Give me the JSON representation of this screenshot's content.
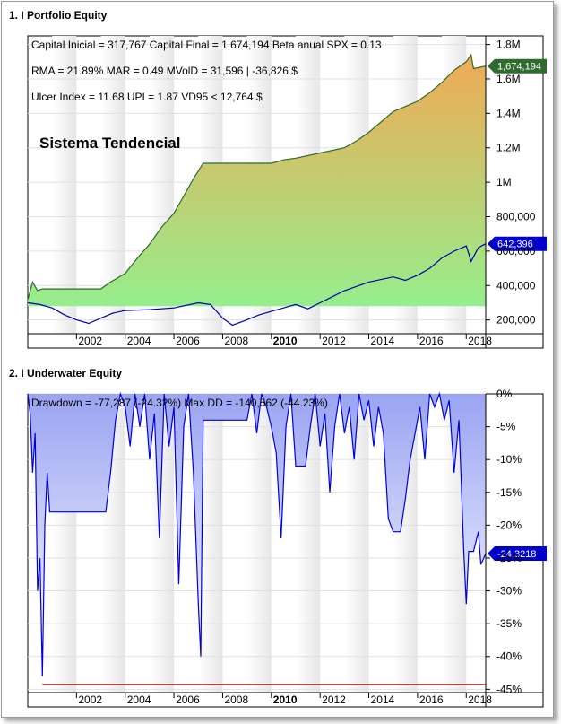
{
  "panels": [
    {
      "title": "1. I Portfolio Equity"
    },
    {
      "title": "2. I Underwater Equity"
    }
  ],
  "chart_data": [
    {
      "type": "area",
      "title": "1. I Portfolio Equity",
      "info_lines": [
        "Capital Inicial = 317,767  Capital Final = 1,674,194  Beta anual SPX = 0.13",
        "RMA = 21.89%   MAR = 0.49   MVolD = 31,596 | -36,826 $",
        "Ulcer Index = 11.68   UPI = 1.87   VD95 < 12,764 $"
      ],
      "annotation": "Sistema Tendencial",
      "x_ticks": [
        "2002",
        "2004",
        "2006",
        "2008",
        "2010",
        "2012",
        "2014",
        "2016",
        "2018"
      ],
      "x_range": [
        2000.0,
        2018.8
      ],
      "y_ticks": [
        "200,000",
        "400,000",
        "600,000",
        "800,000",
        "1M",
        "1.2M",
        "1.4M",
        "1.6M",
        "1.8M"
      ],
      "y_tick_values": [
        200000,
        400000,
        600000,
        800000,
        1000000,
        1200000,
        1400000,
        1600000,
        1800000
      ],
      "ylim": [
        120000,
        1850000
      ],
      "series": [
        {
          "name": "",
          "color": "#2f6b2f",
          "fill_gradient": [
            "#f0aa55",
            "#96ee8c"
          ],
          "end_label": "1,674,194",
          "points": [
            [
              2000.0,
              317767
            ],
            [
              2000.2,
              420000
            ],
            [
              2000.4,
              370000
            ],
            [
              2000.6,
              380000
            ],
            [
              2001.0,
              380000
            ],
            [
              2003.0,
              380000
            ],
            [
              2003.4,
              420000
            ],
            [
              2004.0,
              470000
            ],
            [
              2004.5,
              560000
            ],
            [
              2005.0,
              640000
            ],
            [
              2005.5,
              740000
            ],
            [
              2006.0,
              820000
            ],
            [
              2006.4,
              920000
            ],
            [
              2006.8,
              1020000
            ],
            [
              2007.2,
              1110000
            ],
            [
              2008.0,
              1110000
            ],
            [
              2010.0,
              1110000
            ],
            [
              2010.5,
              1130000
            ],
            [
              2011.0,
              1140000
            ],
            [
              2012.0,
              1170000
            ],
            [
              2013.0,
              1200000
            ],
            [
              2013.5,
              1240000
            ],
            [
              2014.0,
              1290000
            ],
            [
              2014.5,
              1350000
            ],
            [
              2015.0,
              1410000
            ],
            [
              2015.5,
              1440000
            ],
            [
              2016.0,
              1470000
            ],
            [
              2016.5,
              1520000
            ],
            [
              2017.0,
              1580000
            ],
            [
              2017.5,
              1650000
            ],
            [
              2018.0,
              1700000
            ],
            [
              2018.2,
              1740000
            ],
            [
              2018.3,
              1660000
            ],
            [
              2018.8,
              1674194
            ]
          ]
        },
        {
          "name": "",
          "color": "#0000aa",
          "end_label": "642,396",
          "points": [
            [
              2000.0,
              300000
            ],
            [
              2000.5,
              290000
            ],
            [
              2001.0,
              270000
            ],
            [
              2001.5,
              230000
            ],
            [
              2002.0,
              200000
            ],
            [
              2002.5,
              180000
            ],
            [
              2003.0,
              210000
            ],
            [
              2003.5,
              240000
            ],
            [
              2004.0,
              255000
            ],
            [
              2005.0,
              260000
            ],
            [
              2006.0,
              270000
            ],
            [
              2007.0,
              300000
            ],
            [
              2007.5,
              290000
            ],
            [
              2008.0,
              210000
            ],
            [
              2008.4,
              170000
            ],
            [
              2008.8,
              190000
            ],
            [
              2009.5,
              230000
            ],
            [
              2010.0,
              250000
            ],
            [
              2010.5,
              270000
            ],
            [
              2011.0,
              290000
            ],
            [
              2011.5,
              265000
            ],
            [
              2012.0,
              300000
            ],
            [
              2013.0,
              370000
            ],
            [
              2014.0,
              420000
            ],
            [
              2015.0,
              450000
            ],
            [
              2015.5,
              430000
            ],
            [
              2016.0,
              460000
            ],
            [
              2016.5,
              500000
            ],
            [
              2017.0,
              560000
            ],
            [
              2017.5,
              600000
            ],
            [
              2018.0,
              630000
            ],
            [
              2018.2,
              540000
            ],
            [
              2018.5,
              620000
            ],
            [
              2018.8,
              642396
            ]
          ]
        }
      ]
    },
    {
      "type": "area",
      "title": "2. I Underwater Equity",
      "info_lines": [
        "Drawdown = -77,287 (-24.32%)      Max DD = -140,562 (-44.23%)"
      ],
      "x_ticks": [
        "2002",
        "2004",
        "2006",
        "2008",
        "2010",
        "2012",
        "2014",
        "2016",
        "2018"
      ],
      "x_range": [
        2000.0,
        2018.8
      ],
      "y_ticks": [
        "0%",
        "-5%",
        "-10%",
        "-15%",
        "-20%",
        "-25%",
        "-30%",
        "-35%",
        "-40%",
        "-45%"
      ],
      "y_tick_values": [
        0,
        -5,
        -10,
        -15,
        -20,
        -25,
        -30,
        -35,
        -40,
        -45
      ],
      "ylim": [
        -45.5,
        0
      ],
      "max_dd_line": -44.23,
      "series": [
        {
          "name": "",
          "color": "#0000dd",
          "fill_gradient": [
            "#9aa4f2",
            "#ffffff"
          ],
          "end_label": "-24.3218",
          "points": [
            [
              2000.0,
              0
            ],
            [
              2000.1,
              -3
            ],
            [
              2000.2,
              -12
            ],
            [
              2000.3,
              -6
            ],
            [
              2000.4,
              -30
            ],
            [
              2000.5,
              -25
            ],
            [
              2000.6,
              -43
            ],
            [
              2000.7,
              -20
            ],
            [
              2000.8,
              -12
            ],
            [
              2000.9,
              -18
            ],
            [
              2001.0,
              -18
            ],
            [
              2003.2,
              -18
            ],
            [
              2003.4,
              -12
            ],
            [
              2003.6,
              -4
            ],
            [
              2003.8,
              0
            ],
            [
              2004.0,
              -2
            ],
            [
              2004.2,
              -8
            ],
            [
              2004.4,
              0
            ],
            [
              2004.6,
              -5
            ],
            [
              2004.8,
              0
            ],
            [
              2005.0,
              -10
            ],
            [
              2005.2,
              -3
            ],
            [
              2005.4,
              -22
            ],
            [
              2005.6,
              0
            ],
            [
              2005.8,
              -8
            ],
            [
              2006.0,
              -2
            ],
            [
              2006.2,
              -29
            ],
            [
              2006.4,
              -5
            ],
            [
              2006.6,
              0
            ],
            [
              2006.8,
              -12
            ],
            [
              2007.0,
              -32
            ],
            [
              2007.1,
              -40
            ],
            [
              2007.2,
              -4
            ],
            [
              2007.3,
              -4
            ],
            [
              2009.0,
              -4
            ],
            [
              2009.2,
              0
            ],
            [
              2009.4,
              -6
            ],
            [
              2009.6,
              0
            ],
            [
              2009.8,
              -2
            ],
            [
              2010.0,
              -5
            ],
            [
              2010.2,
              -9
            ],
            [
              2010.4,
              -22
            ],
            [
              2010.6,
              -5
            ],
            [
              2010.8,
              0
            ],
            [
              2011.0,
              -11
            ],
            [
              2011.4,
              -11
            ],
            [
              2011.6,
              -5
            ],
            [
              2011.8,
              0
            ],
            [
              2012.0,
              -8
            ],
            [
              2012.2,
              -3
            ],
            [
              2012.4,
              -15
            ],
            [
              2012.6,
              -5
            ],
            [
              2012.8,
              0
            ],
            [
              2013.0,
              -6
            ],
            [
              2013.2,
              -2
            ],
            [
              2013.4,
              -10
            ],
            [
              2013.6,
              0
            ],
            [
              2013.8,
              -4
            ],
            [
              2014.0,
              -1
            ],
            [
              2014.2,
              -8
            ],
            [
              2014.4,
              -2
            ],
            [
              2014.6,
              -6
            ],
            [
              2014.8,
              -19
            ],
            [
              2015.0,
              -21
            ],
            [
              2015.3,
              -21
            ],
            [
              2015.5,
              -16
            ],
            [
              2015.7,
              -10
            ],
            [
              2015.9,
              -6
            ],
            [
              2016.1,
              -2
            ],
            [
              2016.3,
              -10
            ],
            [
              2016.5,
              0
            ],
            [
              2016.7,
              -2
            ],
            [
              2016.9,
              0
            ],
            [
              2017.1,
              -4
            ],
            [
              2017.3,
              -1
            ],
            [
              2017.5,
              -12
            ],
            [
              2017.7,
              -4
            ],
            [
              2017.9,
              -24
            ],
            [
              2018.0,
              -32
            ],
            [
              2018.1,
              -24
            ],
            [
              2018.3,
              -24
            ],
            [
              2018.5,
              -21
            ],
            [
              2018.6,
              -26
            ],
            [
              2018.8,
              -24.3218
            ]
          ]
        }
      ]
    }
  ]
}
